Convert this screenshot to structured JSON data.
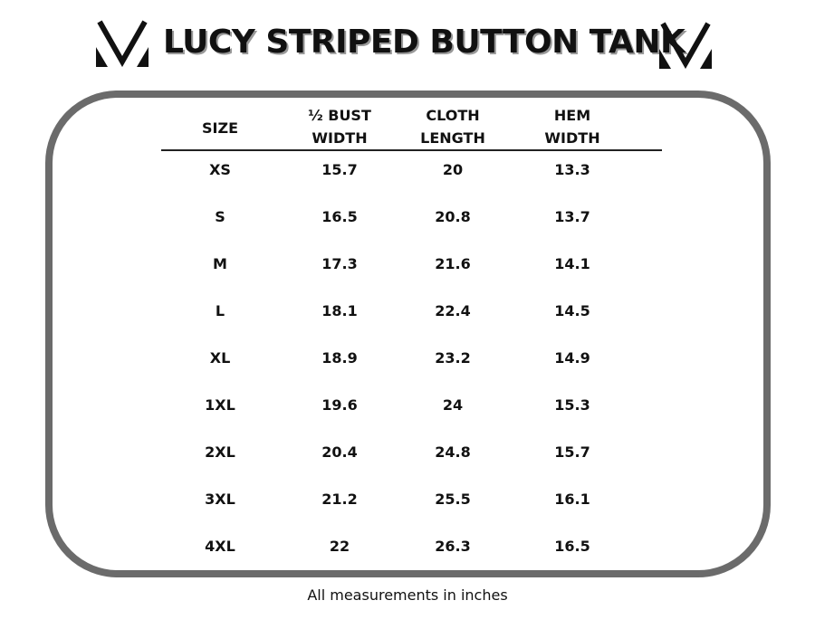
{
  "title": "LUCY STRIPED BUTTON TANK",
  "logo_icon": "v-logo-icon",
  "table": {
    "headers": [
      [
        "SIZE",
        ""
      ],
      [
        "½ BUST",
        "WIDTH"
      ],
      [
        "CLOTH",
        "LENGTH"
      ],
      [
        "HEM",
        "WIDTH"
      ]
    ],
    "rows": [
      [
        "XS",
        "15.7",
        "20",
        "13.3"
      ],
      [
        "S",
        "16.5",
        "20.8",
        "13.7"
      ],
      [
        "M",
        "17.3",
        "21.6",
        "14.1"
      ],
      [
        "L",
        "18.1",
        "22.4",
        "14.5"
      ],
      [
        "XL",
        "18.9",
        "23.2",
        "14.9"
      ],
      [
        "1XL",
        "19.6",
        "24",
        "15.3"
      ],
      [
        "2XL",
        "20.4",
        "24.8",
        "15.7"
      ],
      [
        "3XL",
        "21.2",
        "25.5",
        "16.1"
      ],
      [
        "4XL",
        "22",
        "26.3",
        "16.5"
      ]
    ]
  },
  "footer": "All measurements in inches",
  "colors": {
    "border": "#6b6b6b",
    "text": "#111111"
  }
}
